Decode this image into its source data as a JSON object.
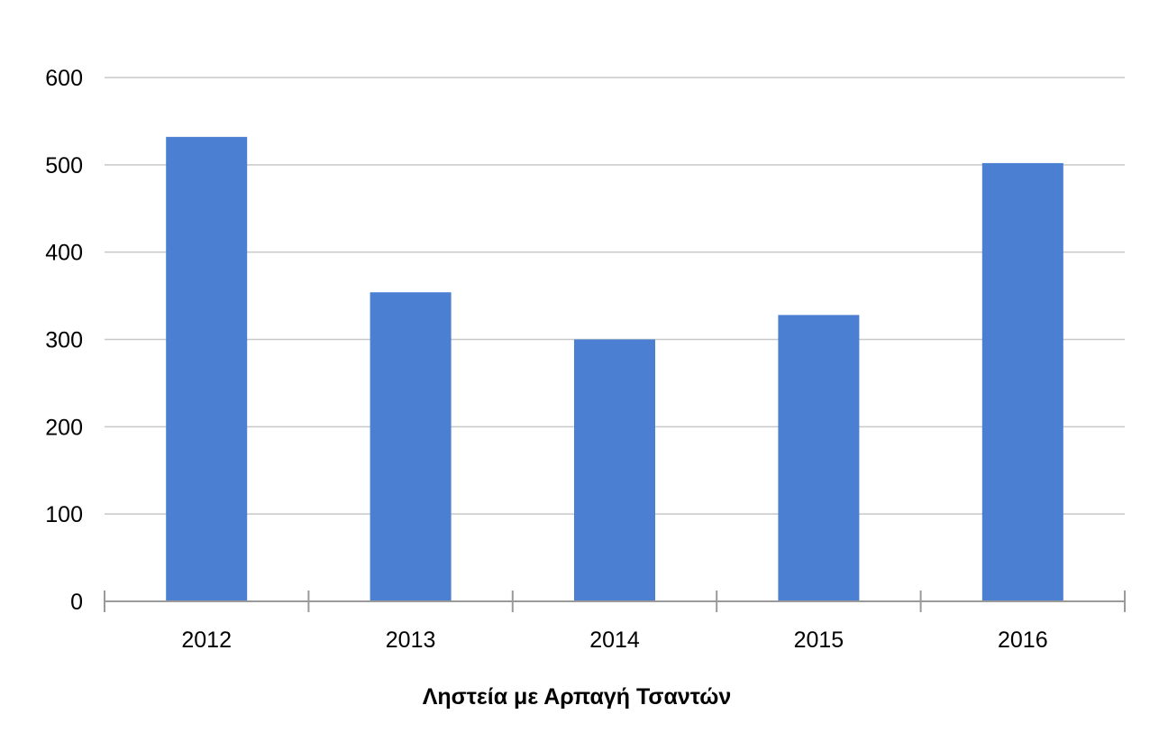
{
  "chart_data": {
    "type": "bar",
    "title": "",
    "xlabel": "Ληστεία με Αρπαγή Τσαντών",
    "ylabel": "",
    "categories": [
      "2012",
      "2013",
      "2014",
      "2015",
      "2016"
    ],
    "series": [
      {
        "values": [
          532,
          354,
          300,
          328,
          502
        ],
        "color": "#4a7fd2"
      }
    ],
    "ylim": [
      0,
      600
    ],
    "yticks": [
      0,
      100,
      200,
      300,
      400,
      500,
      600
    ],
    "grid": true,
    "legend": "none"
  },
  "colors": {
    "bar": "#4a7fd2",
    "grid": "#c8c8c8",
    "axis": "#9a9a9a",
    "text": "#000000"
  }
}
